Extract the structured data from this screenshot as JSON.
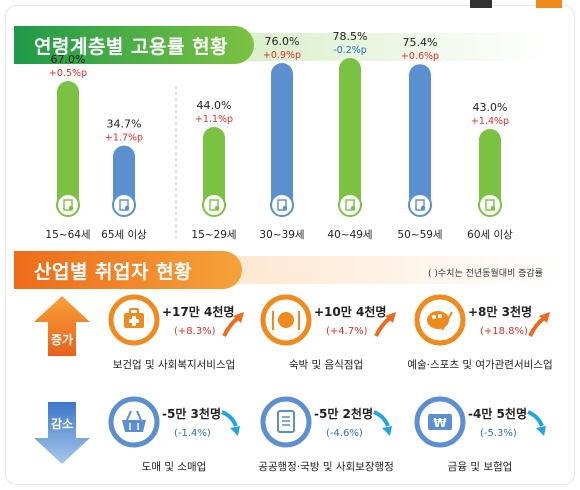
{
  "section1": {
    "title": "연령계층별 고용률 현황"
  },
  "section2": {
    "title": "산업별 취업자 현황",
    "note": "( )수치는 전년동월대비 증감률"
  },
  "colors": {
    "green": "#7cc242",
    "green_dark": "#27a14a",
    "blue": "#5b8fd0",
    "orange": "#f08a1c",
    "red": "#e0312e",
    "cyan": "#21a6e0"
  },
  "chart_data": {
    "type": "bar",
    "title": "연령계층별 고용률 현황",
    "categories": [
      "15~64세",
      "65세 이상",
      "15~29세",
      "30~39세",
      "40~49세",
      "50~59세",
      "60세 이상"
    ],
    "values": [
      67.0,
      34.7,
      44.0,
      76.0,
      78.5,
      75.4,
      43.0
    ],
    "value_labels": [
      "67.0%",
      "34.7%",
      "44.0%",
      "76.0%",
      "78.5%",
      "75.4%",
      "43.0%"
    ],
    "changes": [
      "+0.5%p",
      "+1.7%p",
      "+1.1%p",
      "+0.9%p",
      "-0.2%p",
      "+0.6%p",
      "+1.4%p"
    ],
    "bar_colors": [
      "#7cc242",
      "#5b8fd0",
      "#7cc242",
      "#5b8fd0",
      "#7cc242",
      "#5b8fd0",
      "#7cc242"
    ],
    "ylim": [
      0,
      100
    ],
    "xlabel": "",
    "ylabel": ""
  },
  "industry": {
    "increase_label": "증가",
    "decrease_label": "감소",
    "increase": [
      {
        "name": "보건업 및 사회복지서비스업",
        "change": "+17만 4천명",
        "pct": "(+8.3%)",
        "icon": "medical-kit-icon"
      },
      {
        "name": "숙박 및 음식점업",
        "change": "+10만 4천명",
        "pct": "(+4.7%)",
        "icon": "dish-cutlery-icon"
      },
      {
        "name": "예술·스포츠 및 여가관련서비스업",
        "change": "+8만 3천명",
        "pct": "(+18.8%)",
        "icon": "palette-icon"
      }
    ],
    "decrease": [
      {
        "name": "도매 및 소매업",
        "change": "-5만 3천명",
        "pct": "(-1.4%)",
        "icon": "shopping-basket-icon"
      },
      {
        "name": "공공행정·국방 및 사회보장행정",
        "change": "-5만 2천명",
        "pct": "(-4.6%)",
        "icon": "document-scroll-icon"
      },
      {
        "name": "금융 및 보험업",
        "change": "-4만 5천명",
        "pct": "(-5.3%)",
        "icon": "currency-won-icon"
      }
    ]
  }
}
